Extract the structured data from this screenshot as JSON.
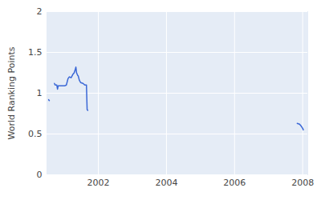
{
  "chart_data": {
    "type": "line",
    "y_label": "World Ranking Points",
    "x": [
      2000.54,
      2000.56,
      2000.63,
      2000.71,
      2000.73,
      2000.78,
      2000.8,
      2000.82,
      2000.89,
      2001.01,
      2001.06,
      2001.11,
      2001.15,
      2001.2,
      2001.25,
      2001.29,
      2001.32,
      2001.34,
      2001.36,
      2001.39,
      2001.41,
      2001.44,
      2001.48,
      2001.55,
      2001.6,
      2001.65,
      2001.67,
      2001.69,
      2004.5,
      2007.84,
      2007.91,
      2007.95,
      2008.0,
      2008.02
    ],
    "values": [
      0.92,
      0.91,
      null,
      1.12,
      1.1,
      1.1,
      1.05,
      1.09,
      1.09,
      1.09,
      1.1,
      1.18,
      1.2,
      1.19,
      1.23,
      1.25,
      1.29,
      1.32,
      1.25,
      1.22,
      1.21,
      1.16,
      1.13,
      1.12,
      1.1,
      1.1,
      0.8,
      0.79,
      null,
      0.63,
      0.62,
      0.6,
      0.57,
      0.55
    ],
    "color": "#3a67d6",
    "xlim": [
      2000.49,
      2008.15
    ],
    "xticks": [
      2002,
      2004,
      2006,
      2008
    ],
    "ylim": [
      0,
      2
    ],
    "yticks": [
      0,
      0.5,
      1,
      1.5,
      2
    ],
    "grid": true
  }
}
